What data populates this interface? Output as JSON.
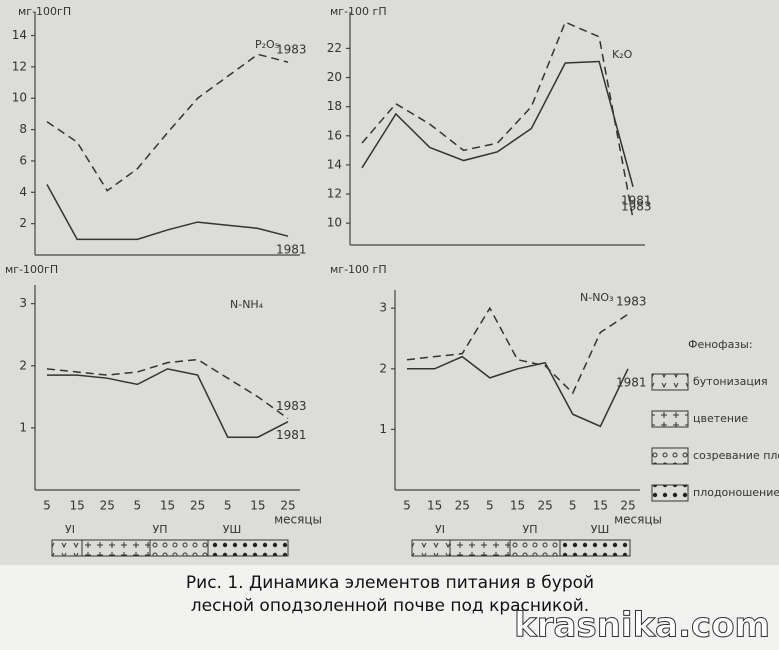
{
  "chart_data": [
    {
      "type": "line",
      "title": "P₂O₅",
      "ylabel": "мг-100гП",
      "categories": [
        null,
        null,
        null,
        null,
        null,
        null,
        null,
        null,
        null
      ],
      "series": [
        {
          "name": "1983",
          "color": "#333",
          "style": "dashed",
          "values": [
            8.5,
            7.2,
            4.1,
            5.5,
            7.8,
            10,
            11.4,
            12.8,
            12.3
          ]
        },
        {
          "name": "1981",
          "color": "#333",
          "style": "solid",
          "values": [
            4.5,
            1,
            1,
            1,
            1.6,
            2.1,
            1.9,
            1.7,
            1.2
          ]
        }
      ],
      "ylim": [
        0,
        15.5
      ],
      "yticks": [
        2,
        4,
        6,
        8,
        10,
        12,
        14
      ]
    },
    {
      "type": "line",
      "title": "K₂O",
      "ylabel": "мг-100 гП",
      "categories": [
        null,
        null,
        null,
        null,
        null,
        null,
        null,
        null,
        null
      ],
      "series": [
        {
          "name": "1983",
          "color": "#333",
          "style": "dashed",
          "values": [
            15.5,
            18.2,
            16.8,
            15,
            15.5,
            18,
            23.8,
            22.8,
            10.3
          ]
        },
        {
          "name": "1981",
          "color": "#333",
          "style": "solid",
          "values": [
            13.8,
            17.5,
            15.2,
            14.3,
            14.9,
            16.5,
            21,
            21.1,
            12.5
          ]
        }
      ],
      "ylim": [
        8.5,
        24.5
      ],
      "yticks": [
        10,
        12,
        14,
        16,
        18,
        20,
        22
      ]
    },
    {
      "type": "line",
      "title": "N-NH₄",
      "ylabel": "мг-100гП",
      "xlabel": "месяцы",
      "categories": [
        "5",
        "15",
        "25",
        "5",
        "15",
        "25",
        "5",
        "15",
        "25"
      ],
      "series": [
        {
          "name": "1983",
          "color": "#333",
          "style": "dashed",
          "values": [
            1.95,
            1.9,
            1.85,
            1.9,
            2.05,
            2.1,
            1.8,
            1.5,
            1.15
          ]
        },
        {
          "name": "1981",
          "color": "#333",
          "style": "solid",
          "values": [
            1.85,
            1.85,
            1.8,
            1.7,
            1.95,
            1.85,
            0.85,
            0.85,
            1.1
          ]
        }
      ],
      "ylim": [
        0,
        3.3
      ],
      "yticks": [
        1,
        2,
        3
      ]
    },
    {
      "type": "line",
      "title": "N-NO₃",
      "ylabel": "мг-100 гП",
      "xlabel": "месяцы",
      "categories": [
        "5",
        "15",
        "25",
        "5",
        "15",
        "25",
        "5",
        "15",
        "25"
      ],
      "series": [
        {
          "name": "1983",
          "color": "#333",
          "style": "dashed",
          "values": [
            2.15,
            2.2,
            2.25,
            3,
            2.15,
            2.05,
            1.6,
            2.6,
            2.9
          ]
        },
        {
          "name": "1981",
          "color": "#333",
          "style": "solid",
          "values": [
            2,
            2,
            2.2,
            1.85,
            2,
            2.1,
            1.25,
            1.05,
            2
          ]
        }
      ],
      "ylim": [
        0,
        3.3
      ],
      "yticks": [
        1,
        2,
        3
      ]
    }
  ],
  "figure": {
    "phase_labels": [
      "УI",
      "УП",
      "УШ"
    ],
    "legend_title": "Фенофазы:",
    "legend": [
      "бутонизация",
      "цветение",
      "созревание плодов",
      "плодоношение"
    ],
    "caption": [
      "Рис. 1. Динамика элементов питания в бурой",
      "лесной оподзоленной почве под красникой."
    ],
    "watermark": "krasnika.com"
  }
}
